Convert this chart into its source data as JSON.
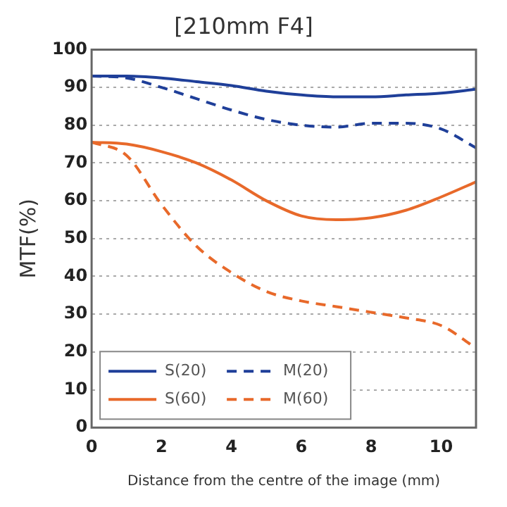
{
  "chart_data": {
    "type": "line",
    "title": "[210mm F4]",
    "xlabel": "Distance from the centre of the image (mm)",
    "ylabel": "MTF(%)",
    "x": [
      0,
      1,
      2,
      3,
      4,
      5,
      6,
      7,
      8,
      9,
      10,
      11
    ],
    "xlim": [
      0,
      11
    ],
    "xticks": [
      0,
      2,
      4,
      6,
      8,
      10
    ],
    "ylim": [
      0,
      100
    ],
    "yticks": [
      0,
      10,
      20,
      30,
      40,
      50,
      60,
      70,
      80,
      90,
      100
    ],
    "grid": "y",
    "legend": "bottom left",
    "marker": "none",
    "series": [
      {
        "name": "S(20)",
        "color": "#1f3f99",
        "line_style": "solid",
        "values": [
          93,
          93,
          92.5,
          91.5,
          90.5,
          89,
          88,
          87.5,
          87.5,
          88,
          88.5,
          89.5
        ]
      },
      {
        "name": "M(20)",
        "color": "#1f3f99",
        "line_style": "dashed",
        "values": [
          93,
          92.5,
          90,
          87,
          84,
          81.5,
          80,
          79.5,
          80.5,
          80.5,
          79,
          74
        ]
      },
      {
        "name": "S(60)",
        "color": "#e8692a",
        "line_style": "solid",
        "values": [
          75.5,
          75,
          73,
          70,
          65.5,
          60,
          56,
          55,
          55.5,
          57.5,
          61,
          65
        ]
      },
      {
        "name": "M(60)",
        "color": "#e8692a",
        "line_style": "dashed",
        "values": [
          75.5,
          72,
          59,
          48,
          41,
          36,
          33.5,
          32,
          30.5,
          29,
          27,
          21
        ]
      }
    ]
  }
}
